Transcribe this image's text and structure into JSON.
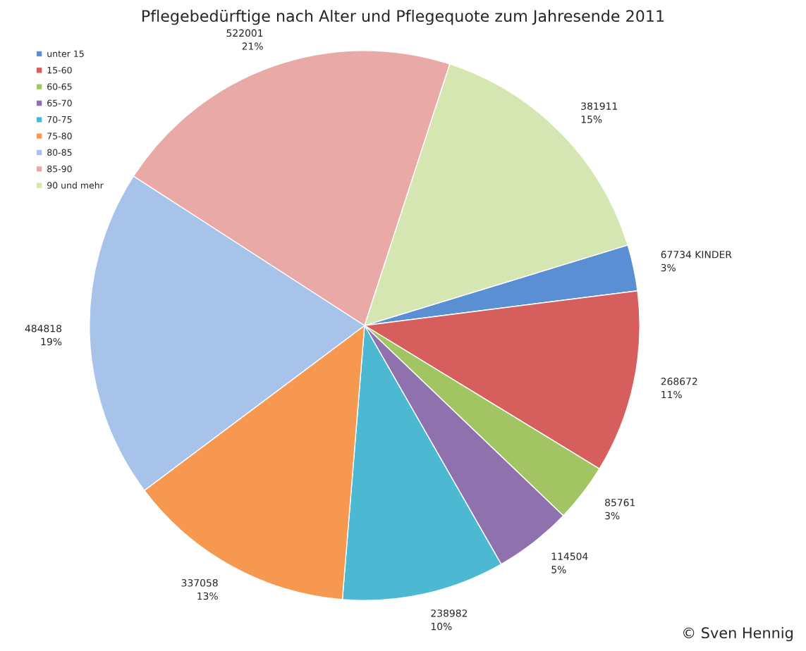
{
  "chart_data": {
    "type": "pie",
    "title": "Pflegebedürftige nach Alter und Pflegequote zum Jahresende 2011",
    "categories": [
      "unter 15",
      "15-60",
      "60-65",
      "65-70",
      "70-75",
      "75-80",
      "80-85",
      "85-90",
      "90 und mehr"
    ],
    "values": [
      67734,
      268672,
      85761,
      114504,
      238982,
      337058,
      484818,
      522001,
      381911
    ],
    "colors": [
      "#5a8fd3",
      "#d65f5d",
      "#a3c463",
      "#8f72ad",
      "#4cb8d2",
      "#f6984f",
      "#a8c3ea",
      "#e9a9a7",
      "#d5e6b3"
    ],
    "value_labels": [
      "67734 KINDER\n3%",
      "268672\n11%",
      "85761\n3%",
      "114504\n5%",
      "238982\n10%",
      "337058\n13%",
      "484818\n19%",
      "522001\n21%",
      "381911\n15%"
    ],
    "legend": "top left",
    "annotations": [
      "© Sven Hennig"
    ]
  }
}
